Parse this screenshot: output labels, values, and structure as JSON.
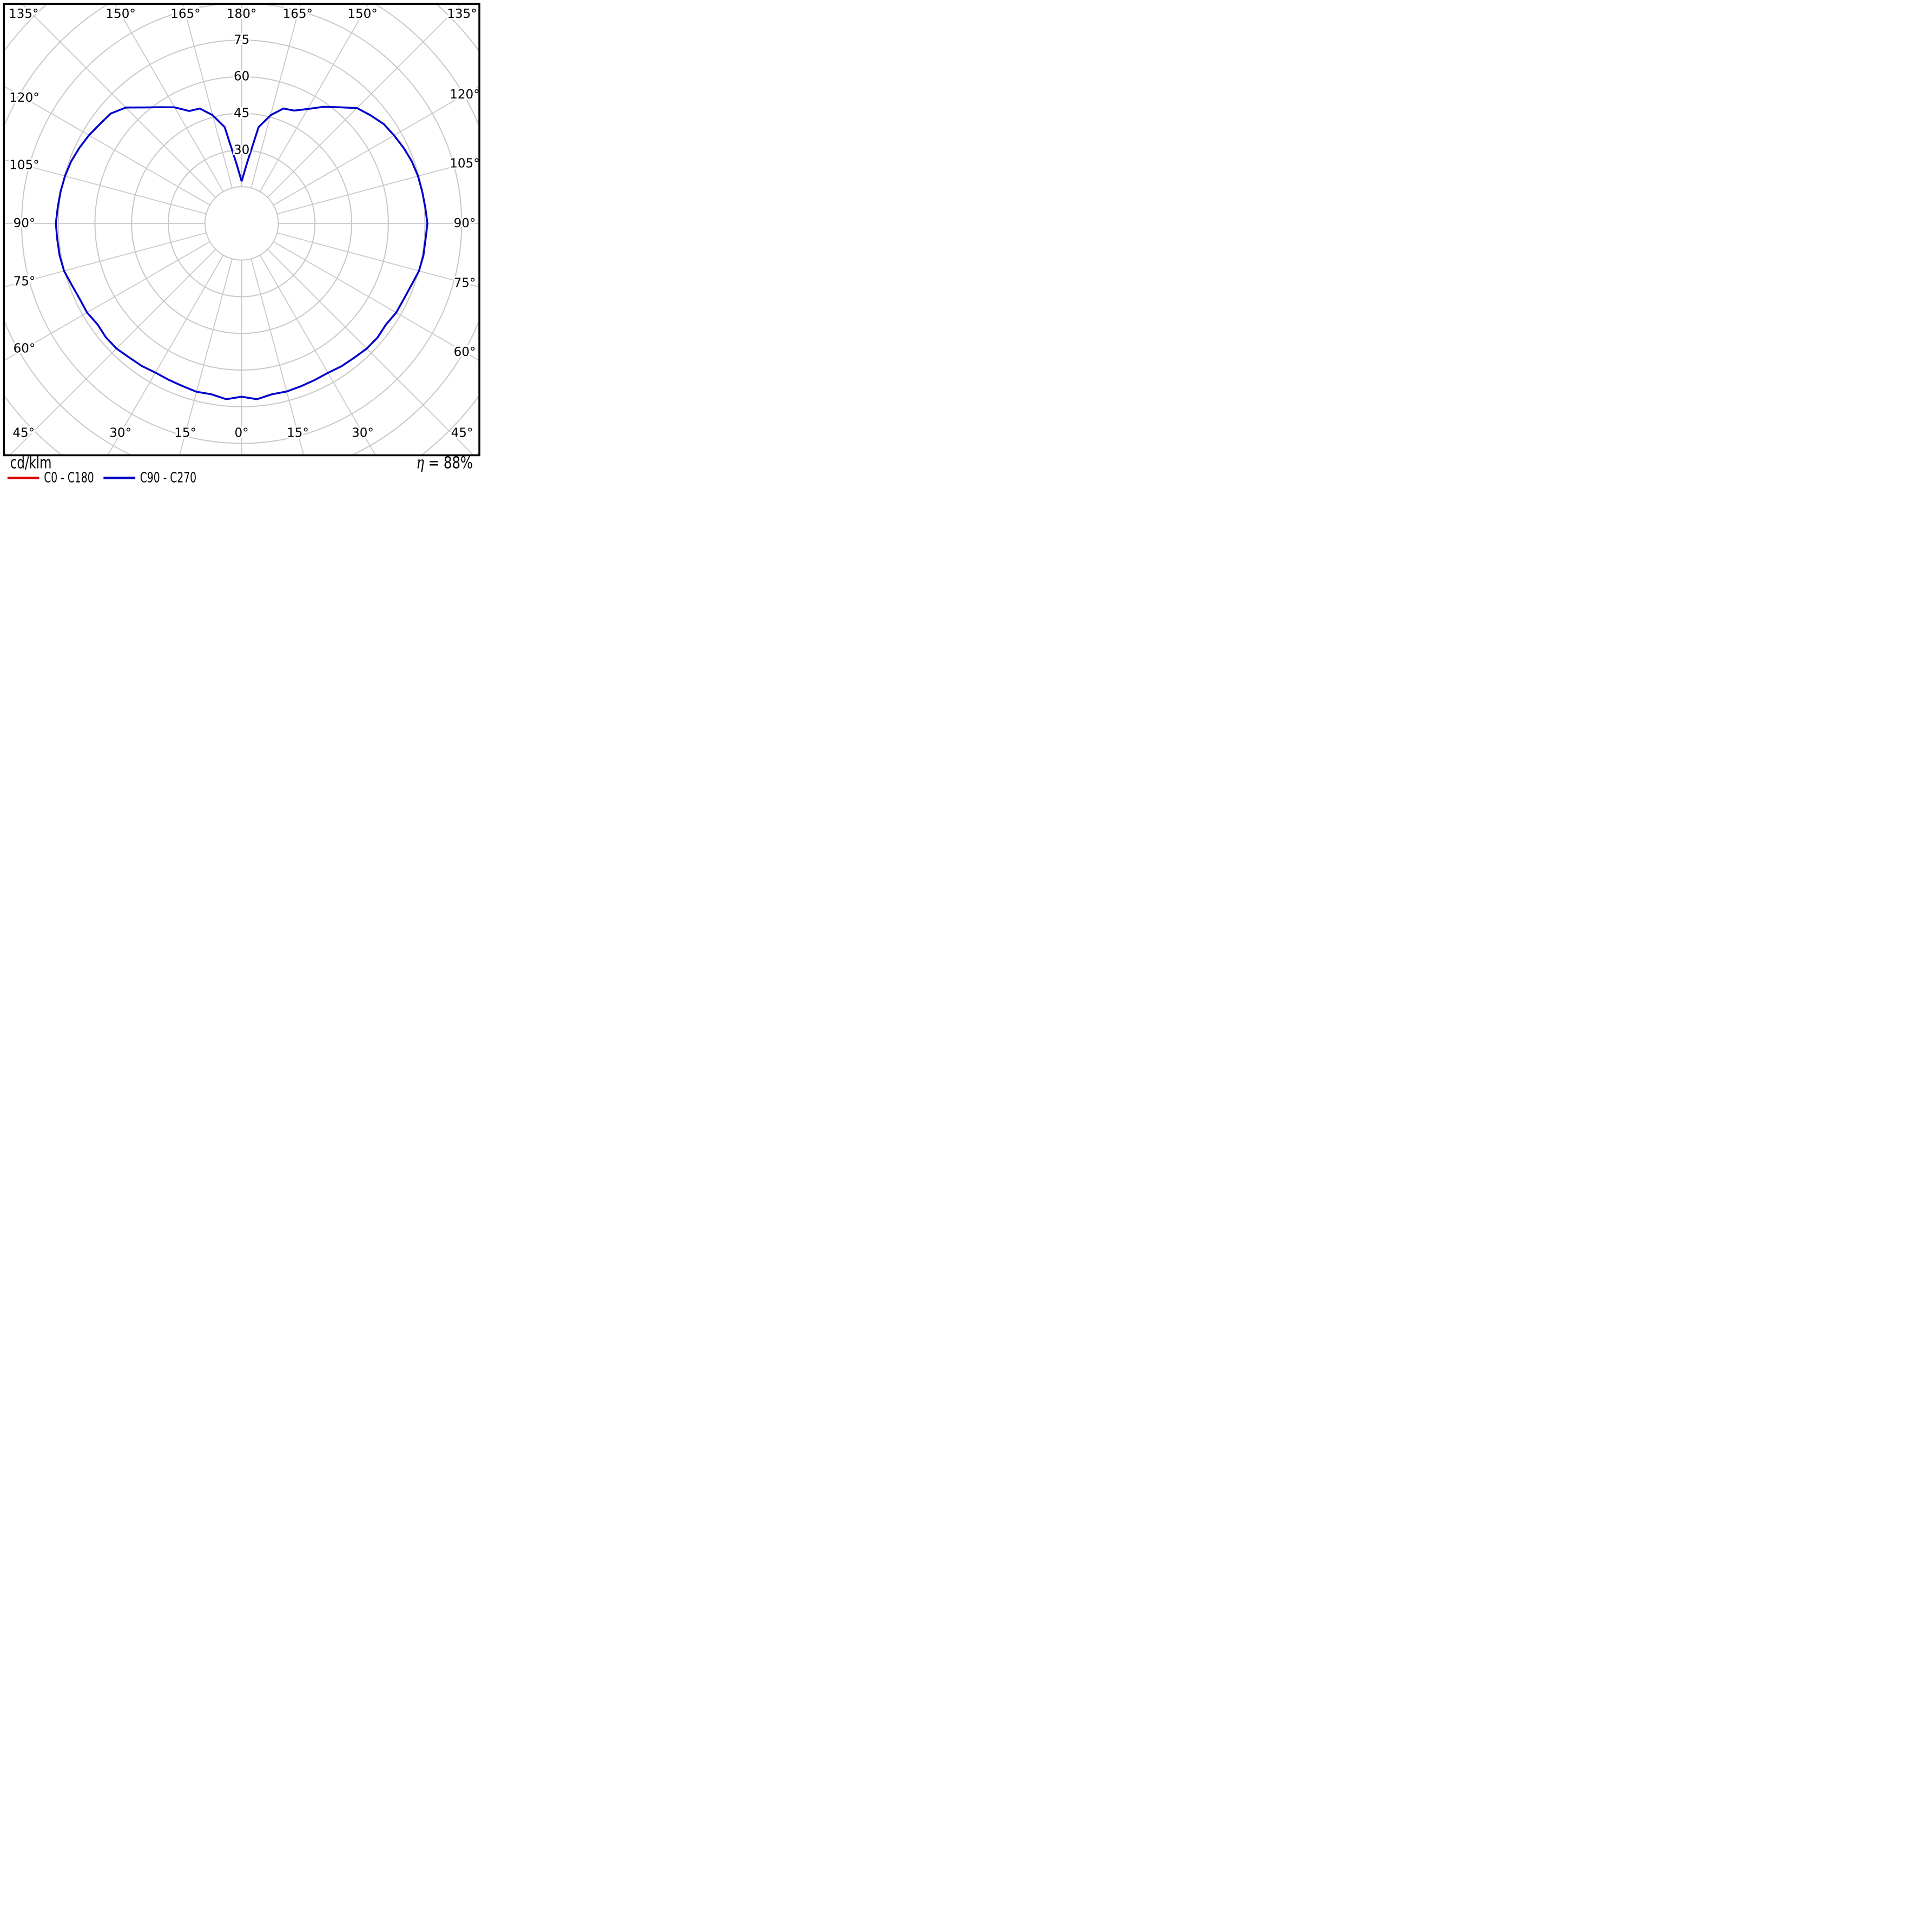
{
  "chart_data": {
    "type": "polar",
    "subtype": "luminous-intensity-distribution",
    "title": "",
    "units_label": "cd/klm",
    "efficiency_label": "η = 88%",
    "legend_position": "bottom",
    "legend": [
      {
        "label": "C0 - C180",
        "color": "#dd0000"
      },
      {
        "label": "C90 - C270",
        "color": "#0000cc"
      }
    ],
    "grid": {
      "color": "#c8c8c8",
      "frame_color": "#000000",
      "background": "#ffffff",
      "spoke_step_deg": 15,
      "rings_cd_klm": [
        15,
        30,
        45,
        60,
        75,
        90,
        105,
        120,
        135
      ],
      "ring_tick_labels": [
        "30",
        "45",
        "60",
        "75"
      ]
    },
    "angle_labels": {
      "top": [
        "135°",
        "150°",
        "165°",
        "180°",
        "165°",
        "150°",
        "135°"
      ],
      "left": [
        "120°",
        "105°",
        "90°",
        "75°",
        "60°"
      ],
      "right": [
        "120°",
        "105°",
        "90°",
        "75°",
        "60°"
      ],
      "bottom": [
        "45°",
        "30°",
        "15°",
        "0°",
        "15°",
        "30°",
        "45°"
      ]
    },
    "gamma_angles_deg": [
      0,
      5,
      10,
      15,
      20,
      25,
      30,
      35,
      40,
      45,
      50,
      55,
      60,
      65,
      70,
      75,
      80,
      85,
      90,
      95,
      100,
      105,
      110,
      115,
      120,
      125,
      130,
      135,
      140,
      145,
      150,
      155,
      160,
      165,
      170,
      175,
      180
    ],
    "series": [
      {
        "name": "C0 - C180",
        "color": "#dd0000",
        "note": "identical curve hidden beneath C90 - C270",
        "left_values_cd_klm": [
          70.9,
          72.2,
          71.0,
          71.3,
          70.8,
          70.6,
          70.5,
          71.2,
          71.6,
          72.4,
          72.5,
          72.0,
          73.0,
          73.1,
          73.9,
          75.2,
          75.6,
          75.7,
          76.0,
          75.5,
          75.2,
          74.8,
          74.2,
          73.2,
          72.1,
          70.8,
          69.9,
          67.0,
          61.9,
          58.0,
          54.8,
          50.7,
          50.0,
          45.8,
          40.0,
          24.6,
          17.2
        ],
        "right_values_cd_klm": [
          70.9,
          72.2,
          71.0,
          71.2,
          70.9,
          70.7,
          70.6,
          71.3,
          71.7,
          72.4,
          72.6,
          72.1,
          73.0,
          73.2,
          73.9,
          75.1,
          75.5,
          75.5,
          76.0,
          75.4,
          75.0,
          74.7,
          74.1,
          73.1,
          72.0,
          70.9,
          68.8,
          66.7,
          62.0,
          58.2,
          54.0,
          50.9,
          50.0,
          45.8,
          40.0,
          24.6,
          17.2
        ]
      },
      {
        "name": "C90 - C270",
        "color": "#0000cc",
        "left_values_cd_klm": [
          70.9,
          72.2,
          71.0,
          71.3,
          70.8,
          70.6,
          70.5,
          71.2,
          71.6,
          72.4,
          72.5,
          72.0,
          73.0,
          73.1,
          73.9,
          75.2,
          75.6,
          75.7,
          76.0,
          75.5,
          75.2,
          74.8,
          74.2,
          73.2,
          72.1,
          70.8,
          69.9,
          67.0,
          61.9,
          58.0,
          54.8,
          50.7,
          50.0,
          45.8,
          40.0,
          24.6,
          17.2
        ],
        "right_values_cd_klm": [
          70.9,
          72.2,
          71.0,
          71.2,
          70.9,
          70.7,
          70.6,
          71.3,
          71.7,
          72.4,
          72.6,
          72.1,
          73.0,
          73.2,
          73.9,
          75.1,
          75.5,
          75.5,
          76.0,
          75.4,
          75.0,
          74.7,
          74.1,
          73.1,
          72.0,
          70.9,
          68.8,
          66.7,
          62.0,
          58.2,
          54.0,
          50.9,
          50.0,
          45.8,
          40.0,
          24.6,
          17.2
        ]
      }
    ],
    "radial_axis": {
      "min": 0,
      "value_at_inner_blank_circle": 15,
      "max_ring_labeled": 75,
      "max_curve_value": 76.0,
      "min_curve_value_at_180deg": 17.2
    }
  }
}
